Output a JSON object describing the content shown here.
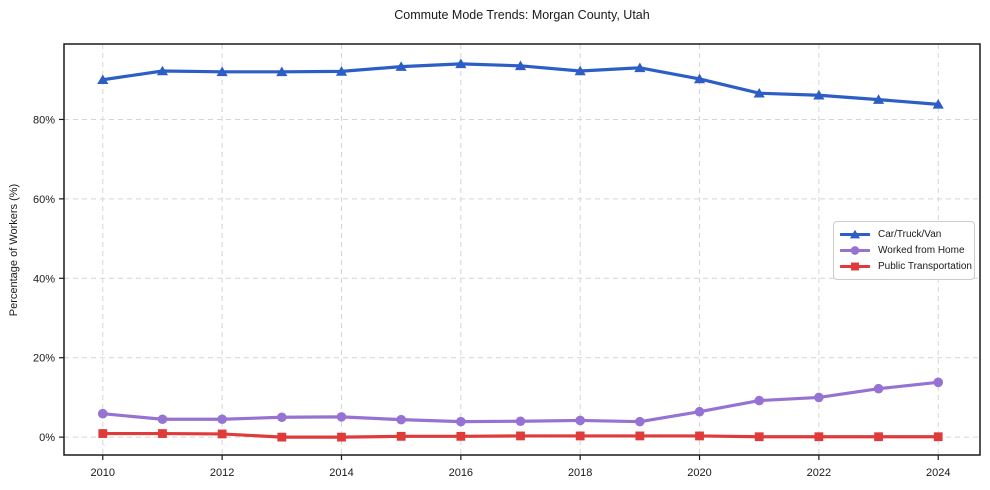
{
  "chart_data": {
    "type": "line",
    "title": "Commute Mode Trends: Morgan County, Utah",
    "xlabel": "",
    "ylabel": "Percentage of Workers (%)",
    "x": [
      2010,
      2011,
      2012,
      2013,
      2014,
      2015,
      2016,
      2017,
      2018,
      2019,
      2020,
      2021,
      2022,
      2023,
      2024
    ],
    "x_ticks": [
      2010,
      2012,
      2014,
      2016,
      2018,
      2020,
      2022,
      2024
    ],
    "x_tick_labels": [
      "2010",
      "2012",
      "2014",
      "2016",
      "2018",
      "2020",
      "2022",
      "2024"
    ],
    "y_ticks": [
      0,
      20,
      40,
      60,
      80
    ],
    "y_tick_labels": [
      "0%",
      "20%",
      "40%",
      "60%",
      "80%"
    ],
    "xlim": [
      2009.35,
      2024.7
    ],
    "ylim": [
      -4.5,
      99
    ],
    "grid": true,
    "legend_position": "center-right",
    "series": [
      {
        "name": "Car/Truck/Van",
        "color": "#2d5ec6",
        "marker": "triangle",
        "values": [
          90.0,
          92.2,
          92.0,
          92.0,
          92.1,
          93.3,
          94.0,
          93.5,
          92.2,
          93.0,
          90.2,
          86.6,
          86.1,
          85.0,
          83.8
        ]
      },
      {
        "name": "Worked from Home",
        "color": "#9673d2",
        "marker": "circle",
        "values": [
          5.9,
          4.5,
          4.5,
          5.0,
          5.1,
          4.4,
          3.9,
          4.0,
          4.2,
          3.9,
          6.4,
          9.2,
          10.0,
          12.2,
          13.8
        ]
      },
      {
        "name": "Public Transportation",
        "color": "#e03b3b",
        "marker": "square",
        "values": [
          0.9,
          0.9,
          0.8,
          0.0,
          0.0,
          0.2,
          0.2,
          0.3,
          0.3,
          0.3,
          0.3,
          0.1,
          0.1,
          0.1,
          0.1
        ]
      }
    ]
  }
}
